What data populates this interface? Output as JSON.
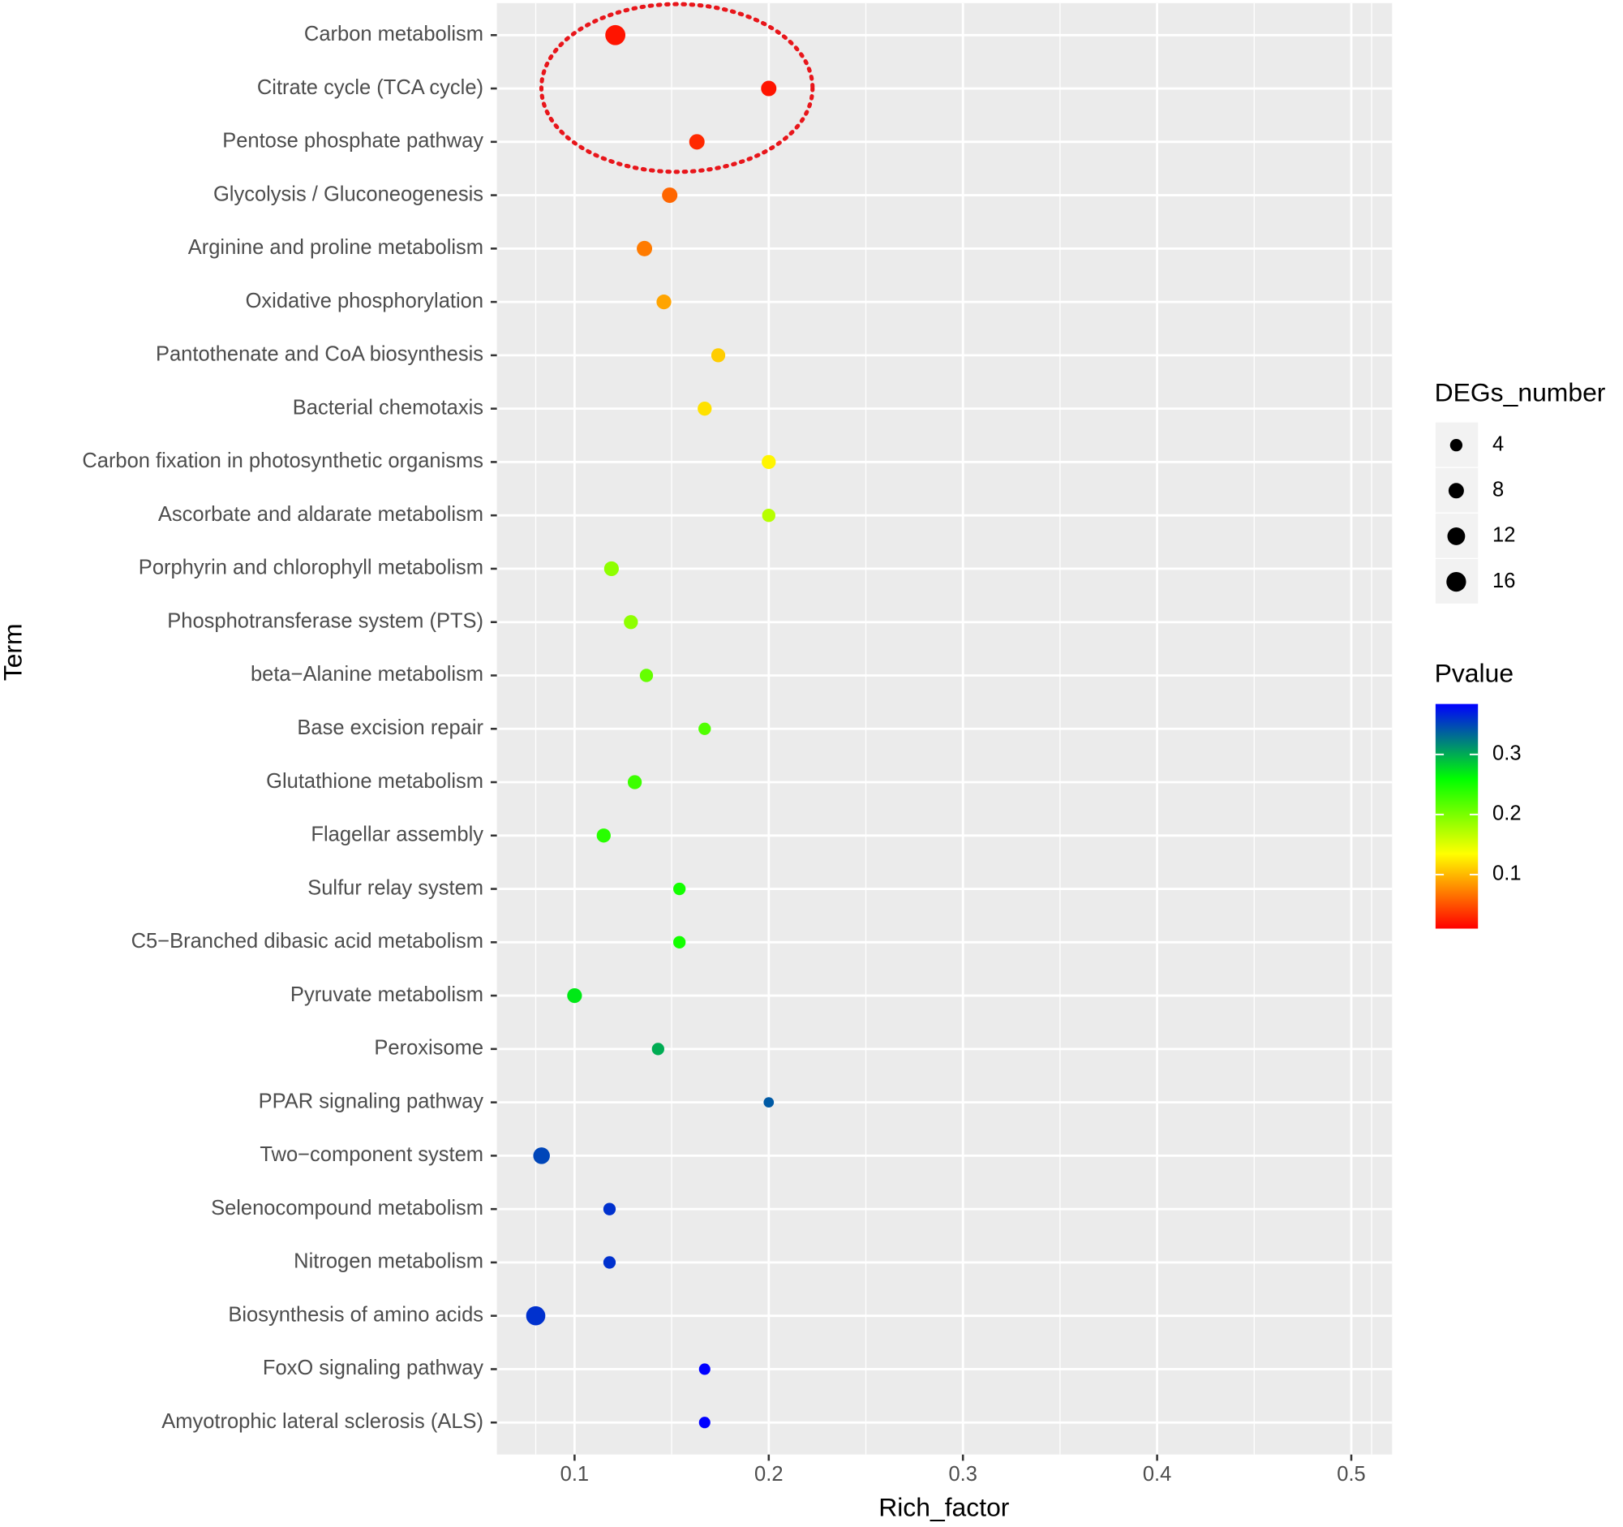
{
  "chart_data": {
    "type": "dot",
    "x_label": "Rich_factor",
    "y_label": "Term",
    "categories": [
      "Carbon metabolism",
      "Citrate cycle (TCA cycle)",
      "Pentose phosphate pathway",
      "Glycolysis / Gluconeogenesis",
      "Arginine and proline metabolism",
      "Oxidative phosphorylation",
      "Pantothenate and CoA biosynthesis",
      "Bacterial chemotaxis",
      "Carbon fixation in photosynthetic organisms",
      "Ascorbate and aldarate metabolism",
      "Porphyrin and chlorophyll metabolism",
      "Phosphotransferase system (PTS)",
      "beta−Alanine metabolism",
      "Base excision repair",
      "Glutathione metabolism",
      "Flagellar assembly",
      "Sulfur relay system",
      "C5−Branched dibasic acid metabolism",
      "Pyruvate metabolism",
      "Peroxisome",
      "PPAR signaling pathway",
      "Two−component system",
      "Selenocompound metabolism",
      "Nitrogen metabolism",
      "Biosynthesis of amino acids",
      "FoxO signaling pathway",
      "Amyotrophic lateral sclerosis (ALS)"
    ],
    "values": [
      0.121,
      0.2,
      0.163,
      0.149,
      0.136,
      0.146,
      0.174,
      0.167,
      0.2,
      0.2,
      0.119,
      0.129,
      0.137,
      0.167,
      0.131,
      0.115,
      0.154,
      0.154,
      0.1,
      0.143,
      0.2,
      0.083,
      0.118,
      0.118,
      0.08,
      0.167,
      0.167
    ],
    "sizes": [
      17,
      8,
      8,
      8,
      8,
      7,
      6,
      6,
      6,
      5,
      7,
      6,
      5,
      4,
      6,
      6,
      4,
      4,
      7,
      4,
      2,
      10,
      4,
      4,
      15,
      3,
      3
    ],
    "pvalues": [
      0.02,
      0.02,
      0.03,
      0.06,
      0.07,
      0.09,
      0.11,
      0.12,
      0.13,
      0.17,
      0.19,
      0.19,
      0.21,
      0.22,
      0.23,
      0.24,
      0.25,
      0.25,
      0.27,
      0.3,
      0.34,
      0.35,
      0.36,
      0.36,
      0.36,
      0.39,
      0.39
    ],
    "xlim": [
      0.06,
      0.521
    ],
    "xticks": [
      0.1,
      0.2,
      0.3,
      0.4,
      0.5
    ],
    "grid": true,
    "size_legend": {
      "title": "DEGs_number",
      "breaks": [
        4,
        8,
        12,
        16
      ]
    },
    "color_legend": {
      "title": "Pvalue",
      "lim": [
        0.01,
        0.384
      ],
      "ticks": [
        0.1,
        0.2,
        0.3
      ],
      "colors": [
        "#ff0000",
        "#ffff00",
        "#00ff00",
        "#0000ff"
      ]
    }
  }
}
